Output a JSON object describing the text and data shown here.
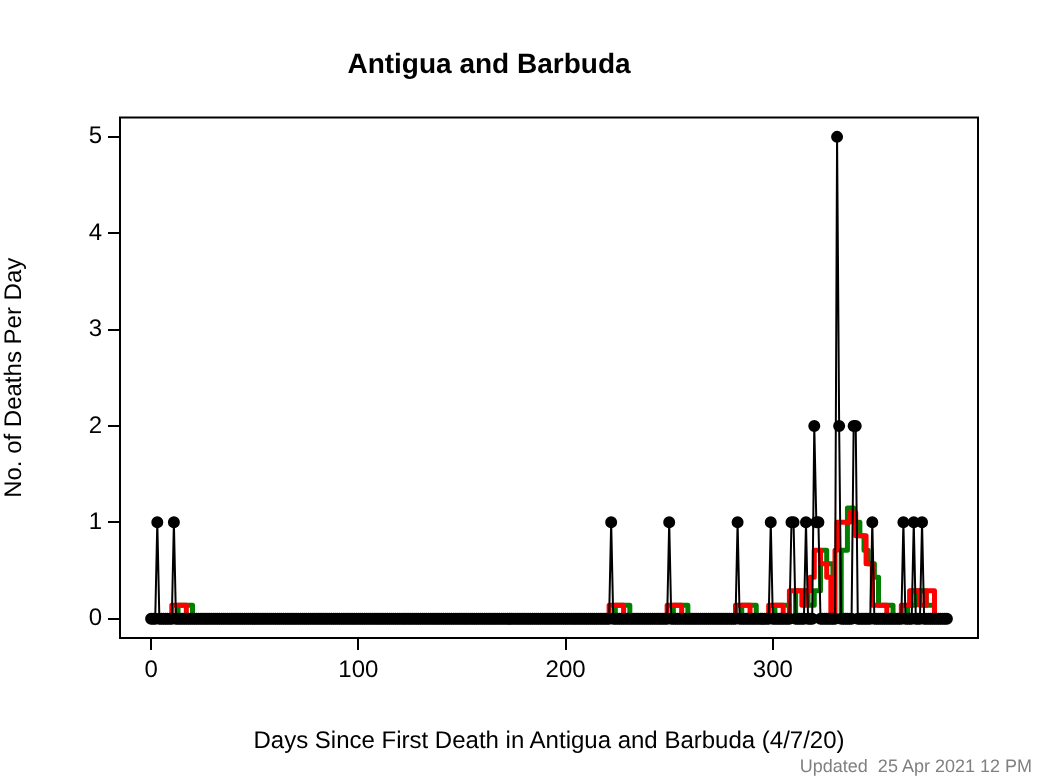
{
  "chart_data": {
    "type": "line",
    "title": "Antigua and Barbuda",
    "xlabel": "Days Since First Death in Antigua and Barbuda (4/7/20)",
    "ylabel": "No. of Deaths Per Day",
    "annotations": [
      "Updated  25 Apr 2021 12 PM"
    ],
    "xlim": [
      -15,
      399
    ],
    "ylim": [
      -0.2,
      5.2
    ],
    "xticks": [
      0,
      100,
      200,
      300
    ],
    "yticks": [
      0,
      1,
      2,
      3,
      4,
      5
    ],
    "legend": false,
    "series": [
      {
        "color": "#000000",
        "marker": "circle",
        "x": [
          0,
          1,
          2,
          3,
          4,
          5,
          6,
          7,
          8,
          9,
          10,
          11,
          12,
          13,
          14,
          15,
          16,
          17,
          18,
          19,
          20,
          21,
          22,
          23,
          24,
          25,
          26,
          27,
          28,
          29,
          30,
          31,
          32,
          33,
          34,
          35,
          36,
          37,
          38,
          39,
          40,
          41,
          42,
          43,
          44,
          45,
          46,
          47,
          48,
          49,
          50,
          51,
          52,
          53,
          54,
          55,
          56,
          57,
          58,
          59,
          60,
          61,
          62,
          63,
          64,
          65,
          66,
          67,
          68,
          69,
          70,
          71,
          72,
          73,
          74,
          75,
          76,
          77,
          78,
          79,
          80,
          81,
          82,
          83,
          84,
          85,
          86,
          87,
          88,
          89,
          90,
          91,
          92,
          93,
          94,
          95,
          96,
          97,
          98,
          99,
          100,
          101,
          102,
          103,
          104,
          105,
          106,
          107,
          108,
          109,
          110,
          111,
          112,
          113,
          114,
          115,
          116,
          117,
          118,
          119,
          120,
          121,
          122,
          123,
          124,
          125,
          126,
          127,
          128,
          129,
          130,
          131,
          132,
          133,
          134,
          135,
          136,
          137,
          138,
          139,
          140,
          141,
          142,
          143,
          144,
          145,
          146,
          147,
          148,
          149,
          150,
          151,
          152,
          153,
          154,
          155,
          156,
          157,
          158,
          159,
          160,
          161,
          162,
          163,
          164,
          165,
          166,
          167,
          168,
          169,
          170,
          171,
          172,
          173,
          174,
          175,
          176,
          177,
          178,
          179,
          180,
          181,
          182,
          183,
          184,
          185,
          186,
          187,
          188,
          189,
          190,
          191,
          192,
          193,
          194,
          195,
          196,
          197,
          198,
          199,
          200,
          201,
          202,
          203,
          204,
          205,
          206,
          207,
          208,
          209,
          210,
          211,
          212,
          213,
          214,
          215,
          216,
          217,
          218,
          219,
          220,
          221,
          222,
          223,
          224,
          225,
          226,
          227,
          228,
          229,
          230,
          231,
          232,
          233,
          234,
          235,
          236,
          237,
          238,
          239,
          240,
          241,
          242,
          243,
          244,
          245,
          246,
          247,
          248,
          249,
          250,
          251,
          252,
          253,
          254,
          255,
          256,
          257,
          258,
          259,
          260,
          261,
          262,
          263,
          264,
          265,
          266,
          267,
          268,
          269,
          270,
          271,
          272,
          273,
          274,
          275,
          276,
          277,
          278,
          279,
          280,
          281,
          282,
          283,
          284,
          285,
          286,
          287,
          288,
          289,
          290,
          291,
          292,
          293,
          294,
          295,
          296,
          297,
          298,
          299,
          300,
          301,
          302,
          303,
          304,
          305,
          306,
          307,
          308,
          309,
          310,
          311,
          312,
          313,
          314,
          315,
          316,
          317,
          318,
          319,
          320,
          321,
          322,
          323,
          324,
          325,
          326,
          327,
          328,
          329,
          330,
          331,
          332,
          333,
          334,
          335,
          336,
          337,
          338,
          339,
          340,
          341,
          342,
          343,
          344,
          345,
          346,
          347,
          348,
          349,
          350,
          351,
          352,
          353,
          354,
          355,
          356,
          357,
          358,
          359,
          360,
          361,
          362,
          363,
          364,
          365,
          366,
          367,
          368,
          369,
          370,
          371,
          372,
          373,
          374,
          375,
          376,
          377,
          378,
          379,
          380,
          381,
          382,
          383,
          384
        ],
        "values": [
          0,
          0,
          0,
          1,
          0,
          0,
          0,
          0,
          0,
          0,
          0,
          1,
          0,
          0,
          0,
          0,
          0,
          0,
          0,
          0,
          0,
          0,
          0,
          0,
          0,
          0,
          0,
          0,
          0,
          0,
          0,
          0,
          0,
          0,
          0,
          0,
          0,
          0,
          0,
          0,
          0,
          0,
          0,
          0,
          0,
          0,
          0,
          0,
          0,
          0,
          0,
          0,
          0,
          0,
          0,
          0,
          0,
          0,
          0,
          0,
          0,
          0,
          0,
          0,
          0,
          0,
          0,
          0,
          0,
          0,
          0,
          0,
          0,
          0,
          0,
          0,
          0,
          0,
          0,
          0,
          0,
          0,
          0,
          0,
          0,
          0,
          0,
          0,
          0,
          0,
          0,
          0,
          0,
          0,
          0,
          0,
          0,
          0,
          0,
          0,
          0,
          0,
          0,
          0,
          0,
          0,
          0,
          0,
          0,
          0,
          0,
          0,
          0,
          0,
          0,
          0,
          0,
          0,
          0,
          0,
          0,
          0,
          0,
          0,
          0,
          0,
          0,
          0,
          0,
          0,
          0,
          0,
          0,
          0,
          0,
          0,
          0,
          0,
          0,
          0,
          0,
          0,
          0,
          0,
          0,
          0,
          0,
          0,
          0,
          0,
          0,
          0,
          0,
          0,
          0,
          0,
          0,
          0,
          0,
          0,
          0,
          0,
          0,
          0,
          0,
          0,
          0,
          0,
          0,
          0,
          0,
          0,
          0,
          0,
          0,
          0,
          0,
          0,
          0,
          0,
          0,
          0,
          0,
          0,
          0,
          0,
          0,
          0,
          0,
          0,
          0,
          0,
          0,
          0,
          0,
          0,
          0,
          0,
          0,
          0,
          0,
          0,
          0,
          0,
          0,
          0,
          0,
          0,
          0,
          0,
          0,
          0,
          0,
          0,
          0,
          0,
          0,
          0,
          0,
          0,
          0,
          0,
          1,
          0,
          0,
          0,
          0,
          0,
          0,
          0,
          0,
          0,
          0,
          0,
          0,
          0,
          0,
          0,
          0,
          0,
          0,
          0,
          0,
          0,
          0,
          0,
          0,
          0,
          0,
          0,
          1,
          0,
          0,
          0,
          0,
          0,
          0,
          0,
          0,
          0,
          0,
          0,
          0,
          0,
          0,
          0,
          0,
          0,
          0,
          0,
          0,
          0,
          0,
          0,
          0,
          0,
          0,
          0,
          0,
          0,
          0,
          0,
          0,
          1,
          0,
          0,
          0,
          0,
          0,
          0,
          0,
          0,
          0,
          0,
          0,
          0,
          0,
          0,
          0,
          1,
          0,
          0,
          0,
          0,
          0,
          0,
          0,
          0,
          0,
          1,
          1,
          0,
          0,
          0,
          0,
          0,
          1,
          0,
          0,
          0,
          2,
          1,
          1,
          0,
          0,
          0,
          0,
          0,
          0,
          0,
          0,
          5,
          2,
          0,
          0,
          0,
          0,
          0,
          0,
          2,
          2,
          0,
          0,
          0,
          0,
          0,
          0,
          0,
          1,
          0,
          0,
          0,
          0,
          0,
          0,
          0,
          0,
          0,
          0,
          0,
          0,
          0,
          0,
          1,
          0,
          0,
          0,
          0,
          1,
          0,
          0,
          0,
          1,
          0,
          0,
          0,
          0,
          0,
          0,
          0,
          0,
          0,
          0,
          0,
          0
        ]
      },
      {
        "type": "step",
        "color": "#ff0000",
        "marker": "none",
        "x": [
          0,
          10,
          17,
          221,
          228,
          249,
          256,
          282,
          289,
          298,
          305,
          308,
          314,
          316,
          318,
          320,
          323,
          326,
          328,
          330,
          331,
          337,
          340,
          345,
          348,
          355,
          362,
          366,
          371,
          374,
          378,
          384
        ],
        "values": [
          0,
          0.14,
          0,
          0.14,
          0,
          0.14,
          0,
          0.14,
          0,
          0.14,
          0,
          0.29,
          0.14,
          0.29,
          0.43,
          0.71,
          0.57,
          0.43,
          0,
          0.71,
          1.0,
          1.1,
          0.86,
          0.57,
          0.14,
          0,
          0.14,
          0.29,
          0.14,
          0.29,
          0,
          0
        ]
      },
      {
        "type": "step",
        "color": "#007f00",
        "marker": "none",
        "x": [
          0,
          13,
          20,
          224,
          231,
          252,
          259,
          285,
          292,
          301,
          308,
          311,
          317,
          320,
          323,
          326,
          329,
          333,
          336,
          339,
          342,
          344,
          346,
          349,
          351,
          358,
          365,
          369,
          374,
          378,
          384
        ],
        "values": [
          0,
          0.14,
          0,
          0.14,
          0,
          0.14,
          0,
          0.14,
          0,
          0.14,
          0,
          0.29,
          0.14,
          0.29,
          0.71,
          0.57,
          0,
          0.71,
          1.15,
          1.0,
          0.86,
          0.71,
          0.57,
          0.43,
          0.14,
          0,
          0.14,
          0.29,
          0.14,
          0,
          0
        ]
      }
    ]
  }
}
